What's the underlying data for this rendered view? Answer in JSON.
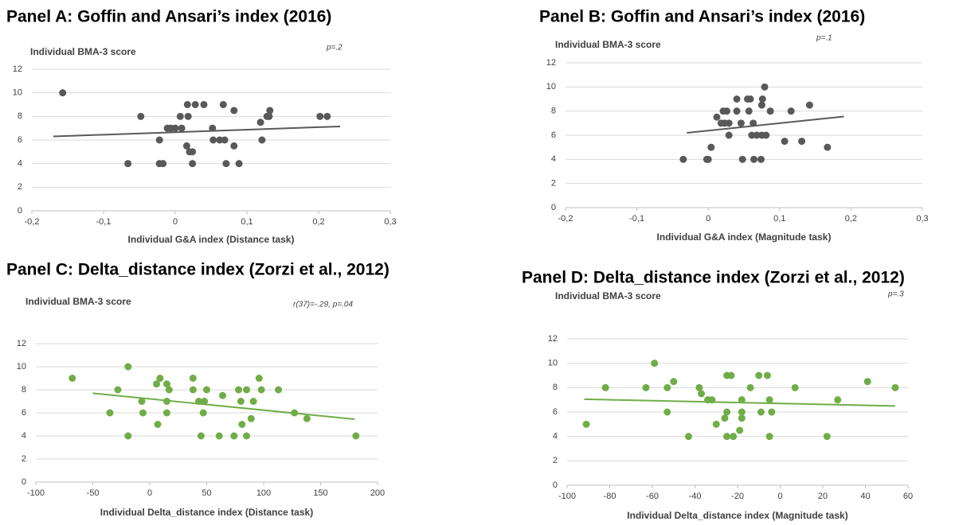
{
  "chart_data": [
    {
      "type": "scatter",
      "title": "Panel A: Goffin and Ansari’s index (2016)",
      "y_label": "Individual BMA-3 score",
      "x_label": "Individual G&A index (Distance task)",
      "annotation": "p=.2",
      "color": "#595959",
      "grid": true,
      "x": [
        -0.157,
        -0.048,
        -0.066,
        -0.022,
        -0.017,
        -0.022,
        -0.011,
        -0.006,
        0,
        0.009,
        0.007,
        0.017,
        0.028,
        0.04,
        0.018,
        0.016,
        0.02,
        0.024,
        0.024,
        0.052,
        0.053,
        0.062,
        0.067,
        0.069,
        0.071,
        0.082,
        0.082,
        0.089,
        0.119,
        0.121,
        0.128,
        0.131,
        0.132,
        0.202,
        0.212
      ],
      "values": [
        10,
        8,
        4,
        4,
        4,
        6,
        7,
        7,
        7,
        7,
        8,
        9,
        9,
        9,
        8,
        5.5,
        5,
        5,
        4,
        7,
        6,
        6,
        9,
        6,
        4,
        8.5,
        5.5,
        4,
        7.5,
        6,
        8,
        8,
        8.5,
        8,
        8
      ],
      "trendline": {
        "x": [
          -0.17,
          0.23
        ],
        "values": [
          6.3,
          7.15
        ]
      },
      "xlim": [
        -0.2,
        0.3
      ],
      "xticks": [
        {
          "value": -0.2,
          "label": "-0,2"
        },
        {
          "value": -0.1,
          "label": "-0,1"
        },
        0,
        {
          "value": 0.1,
          "label": "0,1"
        },
        {
          "value": 0.2,
          "label": "0,2"
        },
        {
          "value": 0.3,
          "label": "0,3"
        }
      ],
      "ylim": [
        0,
        12
      ],
      "yticks": [
        0,
        2,
        4,
        6,
        8,
        10,
        12
      ]
    },
    {
      "type": "scatter",
      "title": "Panel B: Goffin and Ansari’s index (2016)",
      "y_label": "Individual BMA-3 score",
      "x_label": "Individual G&A index (Magnitude task)",
      "annotation": "p=.1",
      "color": "#595959",
      "grid": true,
      "x": [
        -0.035,
        -0.002,
        0,
        0.004,
        0.012,
        0.018,
        0.023,
        0.021,
        0.026,
        0.029,
        0.029,
        0.04,
        0.04,
        0.046,
        0.048,
        0.055,
        0.059,
        0.057,
        0.063,
        0.064,
        0.061,
        0.068,
        0.075,
        0.074,
        0.076,
        0.075,
        0.079,
        0.081,
        0.087,
        0.107,
        0.116,
        0.131,
        0.142,
        0.167
      ],
      "values": [
        4,
        4,
        4,
        5,
        7.5,
        7,
        7,
        8,
        8,
        7,
        6,
        9,
        8,
        7,
        4,
        9,
        9,
        8,
        7,
        4,
        6,
        6,
        6,
        4,
        9,
        8.5,
        10,
        6,
        8,
        5.5,
        8,
        5.5,
        8.5,
        5
      ],
      "trendline": {
        "x": [
          -0.03,
          0.19
        ],
        "values": [
          6.2,
          7.55
        ]
      },
      "xlim": [
        -0.2,
        0.3
      ],
      "xticks": [
        {
          "value": -0.2,
          "label": "-0,2"
        },
        {
          "value": -0.1,
          "label": "-0,1"
        },
        0,
        {
          "value": 0.1,
          "label": "0,1"
        },
        {
          "value": 0.2,
          "label": "0,2"
        },
        {
          "value": 0.3,
          "label": "0,3"
        }
      ],
      "ylim": [
        0,
        12
      ],
      "yticks": [
        0,
        2,
        4,
        6,
        8,
        10,
        12
      ]
    },
    {
      "type": "scatter",
      "title": "Panel C: Delta_distance index (Zorzi et al., 2012)",
      "y_label": "Individual BMA-3 score",
      "x_label": "Individual Delta_distance index (Distance task)",
      "annotation": "r(37)=-.29, p=.04",
      "color": "#70ad47",
      "grid": true,
      "x": [
        -68,
        -35,
        -28,
        -19,
        -19,
        -7,
        -6,
        7,
        6,
        9,
        15,
        15,
        15,
        17,
        38,
        38,
        43,
        45,
        47,
        48,
        50,
        61,
        64,
        74,
        78,
        80,
        81,
        85,
        85,
        89,
        91,
        96,
        98,
        113,
        127,
        138,
        181
      ],
      "values": [
        9,
        6,
        8,
        10,
        4,
        7,
        6,
        5,
        8.5,
        9,
        8.5,
        7,
        6,
        8,
        9,
        8,
        7,
        4,
        6,
        7,
        8,
        4,
        7.5,
        4,
        8,
        7,
        5,
        4,
        8,
        5.5,
        7,
        9,
        8,
        8,
        6,
        5.5,
        4
      ],
      "trendline": {
        "x": [
          -50,
          180
        ],
        "values": [
          7.7,
          5.45
        ]
      },
      "xlim": [
        -100,
        200
      ],
      "xticks": [
        -100,
        -50,
        0,
        50,
        100,
        150,
        200
      ],
      "ylim": [
        0,
        12
      ],
      "yticks": [
        0,
        2,
        4,
        6,
        8,
        10,
        12
      ]
    },
    {
      "type": "scatter",
      "title": "Panel D: Delta_distance index (Zorzi et al., 2012)",
      "y_label": "Individual BMA-3 score",
      "x_label": "Individual Delta_distance index (Magnitude task)",
      "annotation": "p=.3",
      "color": "#70ad47",
      "grid": true,
      "x": [
        -91,
        -82,
        -63,
        -59,
        -53,
        -53,
        -50,
        -43,
        -38,
        -37,
        -34,
        -32,
        -30,
        -26,
        -25,
        -25,
        -23,
        -25,
        -22,
        -19,
        -18,
        -18,
        -18,
        -14,
        -10,
        -9,
        -6,
        -5,
        -5,
        -4,
        7,
        22,
        27,
        41,
        54
      ],
      "values": [
        5,
        8,
        8,
        10,
        8,
        6,
        8.5,
        4,
        8,
        7.5,
        7,
        7,
        5,
        5.5,
        6,
        9,
        9,
        4,
        4,
        4.5,
        5.5,
        7,
        6,
        8,
        9,
        6,
        9,
        4,
        7,
        6,
        8,
        4,
        7,
        8.5,
        8
      ],
      "trendline": {
        "x": [
          -92,
          54
        ],
        "values": [
          7.05,
          6.5
        ]
      },
      "xlim": [
        -100,
        60
      ],
      "xticks": [
        -100,
        -80,
        -60,
        -40,
        -20,
        0,
        20,
        40,
        60
      ],
      "ylim": [
        0,
        12
      ],
      "yticks": [
        0,
        2,
        4,
        6,
        8,
        10,
        12
      ]
    }
  ]
}
